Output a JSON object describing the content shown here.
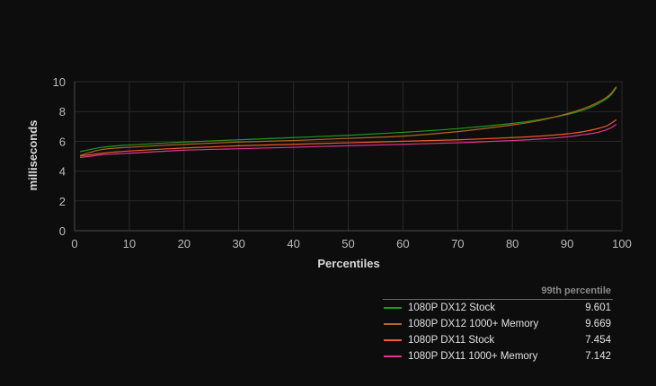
{
  "chart_data": {
    "type": "line",
    "title": "",
    "xlabel": "Percentiles",
    "ylabel": "milliseconds",
    "xlim": [
      0,
      100
    ],
    "ylim": [
      0,
      10
    ],
    "x_ticks": [
      "0",
      "10",
      "20",
      "30",
      "40",
      "50",
      "60",
      "70",
      "80",
      "90",
      "100"
    ],
    "y_ticks": [
      "0",
      "2",
      "4",
      "6",
      "8",
      "10"
    ],
    "grid": true,
    "legend_placement": "bottom-right",
    "legend_header": "99th percentile",
    "x": [
      1,
      5,
      10,
      20,
      30,
      40,
      50,
      60,
      70,
      80,
      85,
      90,
      93,
      95,
      97,
      98,
      99
    ],
    "series": [
      {
        "name": "1080P DX12 Stock",
        "color": "#1e9a1e",
        "value_99th": "9.601",
        "values": [
          5.3,
          5.6,
          5.75,
          5.95,
          6.1,
          6.25,
          6.4,
          6.6,
          6.85,
          7.2,
          7.45,
          7.8,
          8.1,
          8.4,
          8.8,
          9.1,
          9.6
        ]
      },
      {
        "name": "1080P DX12 1000+ Memory",
        "color": "#b5651d",
        "value_99th": "9.669",
        "values": [
          5.05,
          5.45,
          5.6,
          5.8,
          5.95,
          6.05,
          6.2,
          6.35,
          6.65,
          7.1,
          7.4,
          7.85,
          8.2,
          8.5,
          8.9,
          9.2,
          9.67
        ]
      },
      {
        "name": "1080P DX11 Stock",
        "color": "#f05a2a",
        "value_99th": "7.454",
        "values": [
          5.0,
          5.2,
          5.35,
          5.55,
          5.7,
          5.8,
          5.9,
          6.0,
          6.1,
          6.25,
          6.35,
          6.5,
          6.65,
          6.8,
          7.0,
          7.2,
          7.45
        ]
      },
      {
        "name": "1080P DX11 1000+ Memory",
        "color": "#e0338f",
        "value_99th": "7.142",
        "values": [
          4.9,
          5.1,
          5.2,
          5.4,
          5.5,
          5.6,
          5.7,
          5.8,
          5.9,
          6.05,
          6.15,
          6.3,
          6.45,
          6.55,
          6.75,
          6.9,
          7.14
        ]
      }
    ]
  }
}
